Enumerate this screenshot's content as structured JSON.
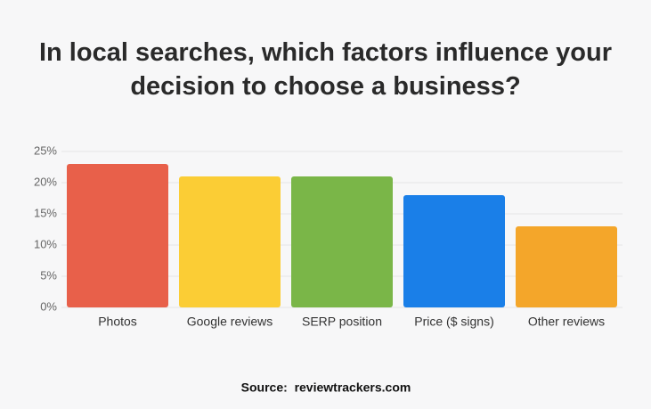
{
  "chart_data": {
    "type": "bar",
    "title": "In local searches, which factors influence your decision to choose a business?",
    "categories": [
      "Photos",
      "Google reviews",
      "SERP position",
      "Price ($ signs)",
      "Other reviews"
    ],
    "values": [
      23,
      21,
      21,
      18,
      13
    ],
    "colors": [
      "#e8604a",
      "#fbcd35",
      "#7ab648",
      "#1a7fe8",
      "#f4a62a"
    ],
    "ylim": [
      0,
      25
    ],
    "yticks": [
      {
        "value": 0,
        "label": "0%"
      },
      {
        "value": 5,
        "label": "5%"
      },
      {
        "value": 10,
        "label": "10%"
      },
      {
        "value": 15,
        "label": "15%"
      },
      {
        "value": 20,
        "label": "20%"
      },
      {
        "value": 25,
        "label": "25%"
      }
    ],
    "grid": true,
    "source": "Source:  reviewtrackers.com"
  }
}
